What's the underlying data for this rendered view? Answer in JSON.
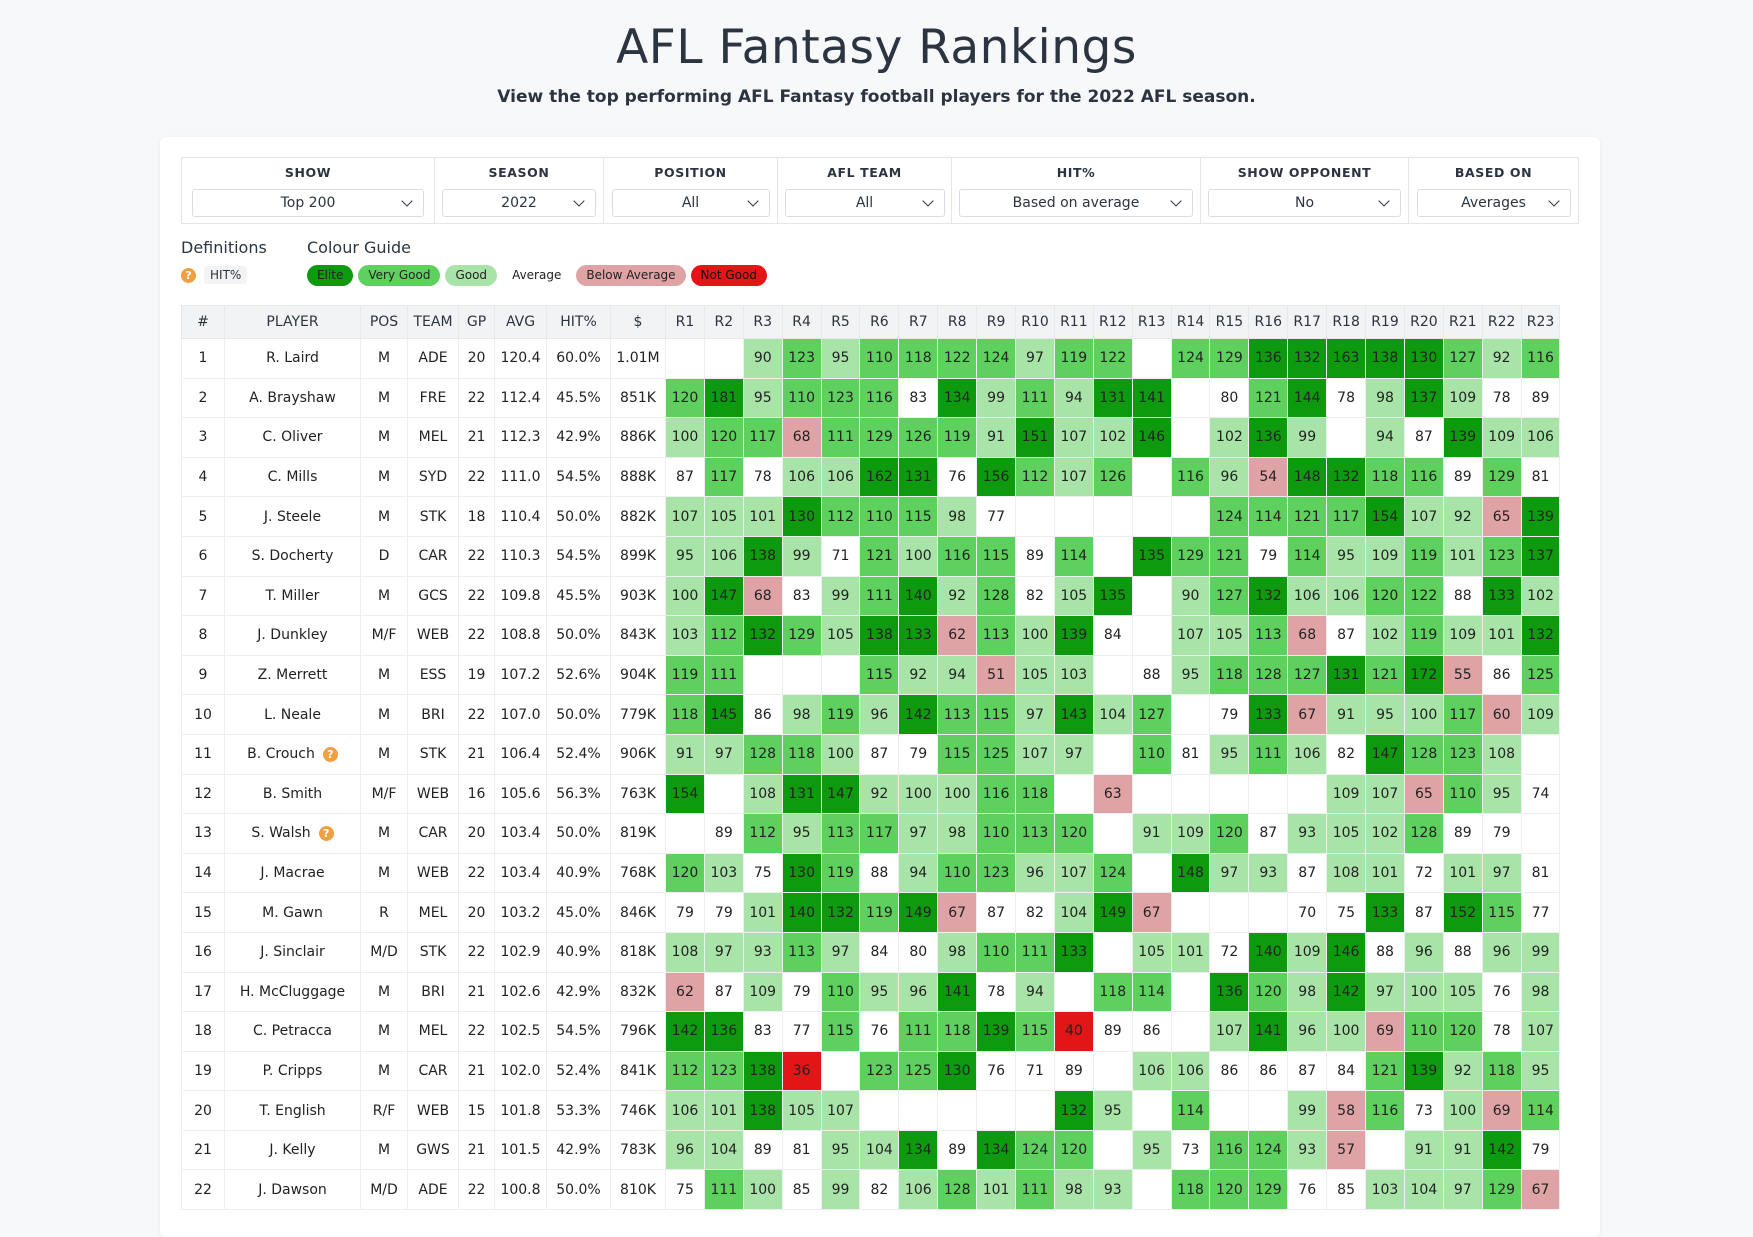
{
  "header": {
    "title": "AFL Fantasy Rankings",
    "subtitle": "View the top performing AFL Fantasy football players for the 2022 AFL season."
  },
  "filters": [
    {
      "label": "SHOW",
      "value": "Top 200",
      "width": 253,
      "selw": 232
    },
    {
      "label": "SEASON",
      "value": "2022",
      "width": 169,
      "selw": 154
    },
    {
      "label": "POSITION",
      "value": "All",
      "width": 174,
      "selw": 158
    },
    {
      "label": "AFL TEAM",
      "value": "All",
      "width": 174,
      "selw": 160
    },
    {
      "label": "HIT%",
      "value": "Based on average",
      "width": 249,
      "selw": 234
    },
    {
      "label": "SHOW OPPONENT",
      "value": "No",
      "width": 208,
      "selw": 193
    },
    {
      "label": "BASED ON",
      "value": "Averages",
      "width": 169,
      "selw": 154
    }
  ],
  "definitions": {
    "title": "Definitions",
    "hit_label": "HIT%",
    "help_icon": "question-circle-icon"
  },
  "colour_guide": {
    "title": "Colour Guide",
    "items": [
      {
        "label": "Elite",
        "color": "#0e9a0e"
      },
      {
        "label": "Very Good",
        "color": "#5ed05e"
      },
      {
        "label": "Good",
        "color": "#a8e3a8"
      },
      {
        "label": "Average",
        "color": "#ffffff"
      },
      {
        "label": "Below Average",
        "color": "#dfa3a5"
      },
      {
        "label": "Not Good",
        "color": "#e21616"
      }
    ]
  },
  "table": {
    "headers": [
      "#",
      "PLAYER",
      "POS",
      "TEAM",
      "GP",
      "AVG",
      "HIT%",
      "$",
      "R1",
      "R2",
      "R3",
      "R4",
      "R5",
      "R6",
      "R7",
      "R8",
      "R9",
      "R10",
      "R11",
      "R12",
      "R13",
      "R14",
      "R15",
      "R16",
      "R17",
      "R18",
      "R19",
      "R20",
      "R21",
      "R22",
      "R23"
    ],
    "rows": [
      {
        "rank": "1",
        "player": "R. Laird",
        "pos": "M",
        "team": "ADE",
        "gp": "20",
        "avg": "120.4",
        "hit": "60.0%",
        "price": "1.01M",
        "rounds": [
          "",
          "",
          "90",
          "123",
          "95",
          "110",
          "118",
          "122",
          "124",
          "97",
          "119",
          "122",
          "",
          "124",
          "129",
          "136",
          "132",
          "163",
          "138",
          "130",
          "127",
          "92",
          "116"
        ]
      },
      {
        "rank": "2",
        "player": "A. Brayshaw",
        "pos": "M",
        "team": "FRE",
        "gp": "22",
        "avg": "112.4",
        "hit": "45.5%",
        "price": "851K",
        "rounds": [
          "120",
          "181",
          "95",
          "110",
          "123",
          "116",
          "83",
          "134",
          "99",
          "111",
          "94",
          "131",
          "141",
          "",
          "80",
          "121",
          "144",
          "78",
          "98",
          "137",
          "109",
          "78",
          "89"
        ]
      },
      {
        "rank": "3",
        "player": "C. Oliver",
        "pos": "M",
        "team": "MEL",
        "gp": "21",
        "avg": "112.3",
        "hit": "42.9%",
        "price": "886K",
        "rounds": [
          "100",
          "120",
          "117",
          "68",
          "111",
          "129",
          "126",
          "119",
          "91",
          "151",
          "107",
          "102",
          "146",
          "",
          "102",
          "136",
          "99",
          "",
          "94",
          "87",
          "139",
          "109",
          "106"
        ]
      },
      {
        "rank": "4",
        "player": "C. Mills",
        "pos": "M",
        "team": "SYD",
        "gp": "22",
        "avg": "111.0",
        "hit": "54.5%",
        "price": "888K",
        "rounds": [
          "87",
          "117",
          "78",
          "106",
          "106",
          "162",
          "131",
          "76",
          "156",
          "112",
          "107",
          "126",
          "",
          "116",
          "96",
          "54",
          "148",
          "132",
          "118",
          "116",
          "89",
          "129",
          "81"
        ]
      },
      {
        "rank": "5",
        "player": "J. Steele",
        "pos": "M",
        "team": "STK",
        "gp": "18",
        "avg": "110.4",
        "hit": "50.0%",
        "price": "882K",
        "rounds": [
          "107",
          "105",
          "101",
          "130",
          "112",
          "110",
          "115",
          "98",
          "77",
          "",
          "",
          "",
          "",
          "",
          "124",
          "114",
          "121",
          "117",
          "154",
          "107",
          "92",
          "65",
          "139"
        ]
      },
      {
        "rank": "6",
        "player": "S. Docherty",
        "pos": "D",
        "team": "CAR",
        "gp": "22",
        "avg": "110.3",
        "hit": "54.5%",
        "price": "899K",
        "rounds": [
          "95",
          "106",
          "138",
          "99",
          "71",
          "121",
          "100",
          "116",
          "115",
          "89",
          "114",
          "",
          "135",
          "129",
          "121",
          "79",
          "114",
          "95",
          "109",
          "119",
          "101",
          "123",
          "137"
        ]
      },
      {
        "rank": "7",
        "player": "T. Miller",
        "pos": "M",
        "team": "GCS",
        "gp": "22",
        "avg": "109.8",
        "hit": "45.5%",
        "price": "903K",
        "rounds": [
          "100",
          "147",
          "68",
          "83",
          "99",
          "111",
          "140",
          "92",
          "128",
          "82",
          "105",
          "135",
          "",
          "90",
          "127",
          "132",
          "106",
          "106",
          "120",
          "122",
          "88",
          "133",
          "102"
        ]
      },
      {
        "rank": "8",
        "player": "J. Dunkley",
        "pos": "M/F",
        "team": "WEB",
        "gp": "22",
        "avg": "108.8",
        "hit": "50.0%",
        "price": "843K",
        "rounds": [
          "103",
          "112",
          "132",
          "129",
          "105",
          "138",
          "133",
          "62",
          "113",
          "100",
          "139",
          "84",
          "",
          "107",
          "105",
          "113",
          "68",
          "87",
          "102",
          "119",
          "109",
          "101",
          "132"
        ]
      },
      {
        "rank": "9",
        "player": "Z. Merrett",
        "pos": "M",
        "team": "ESS",
        "gp": "19",
        "avg": "107.2",
        "hit": "52.6%",
        "price": "904K",
        "rounds": [
          "119",
          "111",
          "",
          "",
          "",
          "115",
          "92",
          "94",
          "51",
          "105",
          "103",
          "",
          "88",
          "95",
          "118",
          "128",
          "127",
          "131",
          "121",
          "172",
          "55",
          "86",
          "125"
        ]
      },
      {
        "rank": "10",
        "player": "L. Neale",
        "pos": "M",
        "team": "BRI",
        "gp": "22",
        "avg": "107.0",
        "hit": "50.0%",
        "price": "779K",
        "rounds": [
          "118",
          "145",
          "86",
          "98",
          "119",
          "96",
          "142",
          "113",
          "115",
          "97",
          "143",
          "104",
          "127",
          "",
          "79",
          "133",
          "67",
          "91",
          "95",
          "100",
          "117",
          "60",
          "109"
        ]
      },
      {
        "rank": "11",
        "player": "B. Crouch",
        "help": true,
        "pos": "M",
        "team": "STK",
        "gp": "21",
        "avg": "106.4",
        "hit": "52.4%",
        "price": "906K",
        "rounds": [
          "91",
          "97",
          "128",
          "118",
          "100",
          "87",
          "79",
          "115",
          "125",
          "107",
          "97",
          "",
          "110",
          "81",
          "95",
          "111",
          "106",
          "82",
          "147",
          "128",
          "123",
          "108",
          ""
        ]
      },
      {
        "rank": "12",
        "player": "B. Smith",
        "pos": "M/F",
        "team": "WEB",
        "gp": "16",
        "avg": "105.6",
        "hit": "56.3%",
        "price": "763K",
        "rounds": [
          "154",
          "",
          "108",
          "131",
          "147",
          "92",
          "100",
          "100",
          "116",
          "118",
          "",
          "63",
          "",
          "",
          "",
          "",
          "",
          "109",
          "107",
          "65",
          "110",
          "95",
          "74"
        ]
      },
      {
        "rank": "13",
        "player": "S. Walsh",
        "help": true,
        "pos": "M",
        "team": "CAR",
        "gp": "20",
        "avg": "103.4",
        "hit": "50.0%",
        "price": "819K",
        "rounds": [
          "",
          "89",
          "112",
          "95",
          "113",
          "117",
          "97",
          "98",
          "110",
          "113",
          "120",
          "",
          "91",
          "109",
          "120",
          "87",
          "93",
          "105",
          "102",
          "128",
          "89",
          "79",
          ""
        ]
      },
      {
        "rank": "14",
        "player": "J. Macrae",
        "pos": "M",
        "team": "WEB",
        "gp": "22",
        "avg": "103.4",
        "hit": "40.9%",
        "price": "768K",
        "rounds": [
          "120",
          "103",
          "75",
          "130",
          "119",
          "88",
          "94",
          "110",
          "123",
          "96",
          "107",
          "124",
          "",
          "148",
          "97",
          "93",
          "87",
          "108",
          "101",
          "72",
          "101",
          "97",
          "81"
        ]
      },
      {
        "rank": "15",
        "player": "M. Gawn",
        "pos": "R",
        "team": "MEL",
        "gp": "20",
        "avg": "103.2",
        "hit": "45.0%",
        "price": "846K",
        "rounds": [
          "79",
          "79",
          "101",
          "140",
          "132",
          "119",
          "149",
          "67",
          "87",
          "82",
          "104",
          "149",
          "67",
          "",
          "",
          "",
          "70",
          "75",
          "133",
          "87",
          "152",
          "115",
          "77"
        ]
      },
      {
        "rank": "16",
        "player": "J. Sinclair",
        "pos": "M/D",
        "team": "STK",
        "gp": "22",
        "avg": "102.9",
        "hit": "40.9%",
        "price": "818K",
        "rounds": [
          "108",
          "97",
          "93",
          "113",
          "97",
          "84",
          "80",
          "98",
          "110",
          "111",
          "133",
          "",
          "105",
          "101",
          "72",
          "140",
          "109",
          "146",
          "88",
          "96",
          "88",
          "96",
          "99"
        ]
      },
      {
        "rank": "17",
        "player": "H. McCluggage",
        "pos": "M",
        "team": "BRI",
        "gp": "21",
        "avg": "102.6",
        "hit": "42.9%",
        "price": "832K",
        "rounds": [
          "62",
          "87",
          "109",
          "79",
          "110",
          "95",
          "96",
          "141",
          "78",
          "94",
          "",
          "118",
          "114",
          "",
          "136",
          "120",
          "98",
          "142",
          "97",
          "100",
          "105",
          "76",
          "98"
        ]
      },
      {
        "rank": "18",
        "player": "C. Petracca",
        "pos": "M",
        "team": "MEL",
        "gp": "22",
        "avg": "102.5",
        "hit": "54.5%",
        "price": "796K",
        "rounds": [
          "142",
          "136",
          "83",
          "77",
          "115",
          "76",
          "111",
          "118",
          "139",
          "115",
          "40",
          "89",
          "86",
          "",
          "107",
          "141",
          "96",
          "100",
          "69",
          "110",
          "120",
          "78",
          "107"
        ]
      },
      {
        "rank": "19",
        "player": "P. Cripps",
        "pos": "M",
        "team": "CAR",
        "gp": "21",
        "avg": "102.0",
        "hit": "52.4%",
        "price": "841K",
        "rounds": [
          "112",
          "123",
          "138",
          "36",
          "",
          "123",
          "125",
          "130",
          "76",
          "71",
          "89",
          "",
          "106",
          "106",
          "86",
          "86",
          "87",
          "84",
          "121",
          "139",
          "92",
          "118",
          "95"
        ]
      },
      {
        "rank": "20",
        "player": "T. English",
        "pos": "R/F",
        "team": "WEB",
        "gp": "15",
        "avg": "101.8",
        "hit": "53.3%",
        "price": "746K",
        "rounds": [
          "106",
          "101",
          "138",
          "105",
          "107",
          "",
          "",
          "",
          "",
          "",
          "132",
          "95",
          "",
          "114",
          "",
          "",
          "99",
          "58",
          "116",
          "73",
          "100",
          "69",
          "114"
        ]
      },
      {
        "rank": "21",
        "player": "J. Kelly",
        "pos": "M",
        "team": "GWS",
        "gp": "21",
        "avg": "101.5",
        "hit": "42.9%",
        "price": "783K",
        "rounds": [
          "96",
          "104",
          "89",
          "81",
          "95",
          "104",
          "134",
          "89",
          "134",
          "124",
          "120",
          "",
          "95",
          "73",
          "116",
          "124",
          "93",
          "57",
          "",
          "91",
          "91",
          "142",
          "79"
        ]
      },
      {
        "rank": "22",
        "player": "J. Dawson",
        "pos": "M/D",
        "team": "ADE",
        "gp": "22",
        "avg": "100.8",
        "hit": "50.0%",
        "price": "810K",
        "rounds": [
          "75",
          "111",
          "100",
          "85",
          "99",
          "82",
          "106",
          "128",
          "101",
          "111",
          "98",
          "93",
          "",
          "118",
          "120",
          "129",
          "76",
          "85",
          "103",
          "104",
          "97",
          "129",
          "67"
        ]
      }
    ]
  }
}
